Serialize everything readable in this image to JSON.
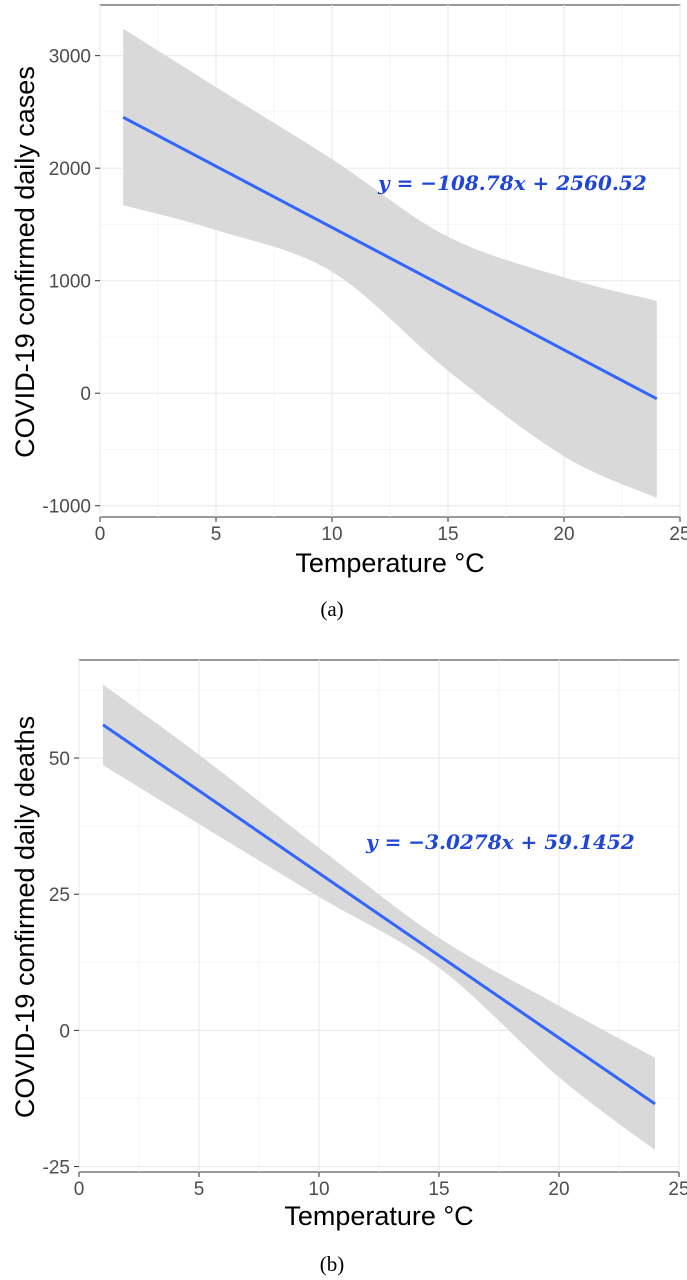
{
  "chart_data": [
    {
      "type": "line",
      "panel": "a",
      "xlabel": "Temperature °C",
      "ylabel": "COVID-19 confirmed daily cases",
      "equation": "y = −108.78x + 2560.52",
      "caption": "(a)",
      "xlim": [
        0,
        25
      ],
      "ylim": [
        -1100,
        3450
      ],
      "x_ticks": [
        0,
        5,
        10,
        15,
        20,
        25
      ],
      "y_ticks": [
        -1000,
        0,
        1000,
        2000,
        3000
      ],
      "y_tick_labels": [
        "-1000",
        "0",
        "1000",
        "2000",
        "3000"
      ],
      "grid": true,
      "line_color": "#3366ff",
      "band_color": "#d9d9d9",
      "equation_color": "#1f45d9",
      "fit": {
        "x": [
          1,
          24
        ],
        "y": [
          2452,
          -50
        ]
      },
      "confidence_band": {
        "x": [
          1,
          5,
          10,
          15,
          20,
          24
        ],
        "upper": [
          3240,
          2720,
          2080,
          1390,
          1030,
          820
        ],
        "lower": [
          1670,
          1450,
          1080,
          200,
          -560,
          -930
        ]
      }
    },
    {
      "type": "line",
      "panel": "b",
      "xlabel": "Temperature °C",
      "ylabel": "COVID-19 confirmed daily deaths",
      "equation": "y = −3.0278x + 59.1452",
      "caption": "(b)",
      "xlim": [
        0,
        25
      ],
      "ylim": [
        -26,
        68
      ],
      "x_ticks": [
        0,
        5,
        10,
        15,
        20,
        25
      ],
      "y_ticks": [
        -25,
        0,
        25,
        50
      ],
      "y_tick_labels": [
        "-25",
        "0",
        "25",
        "50"
      ],
      "grid": true,
      "line_color": "#3366ff",
      "band_color": "#d9d9d9",
      "equation_color": "#1f45d9",
      "fit": {
        "x": [
          1,
          24
        ],
        "y": [
          56.1,
          -13.5
        ]
      },
      "confidence_band": {
        "x": [
          1,
          5,
          10,
          15,
          20,
          24
        ],
        "upper": [
          63.5,
          50.6,
          33.5,
          17.0,
          4.5,
          -5.0
        ],
        "lower": [
          48.7,
          37.9,
          24.5,
          11.5,
          -8.6,
          -22.0
        ]
      }
    }
  ]
}
